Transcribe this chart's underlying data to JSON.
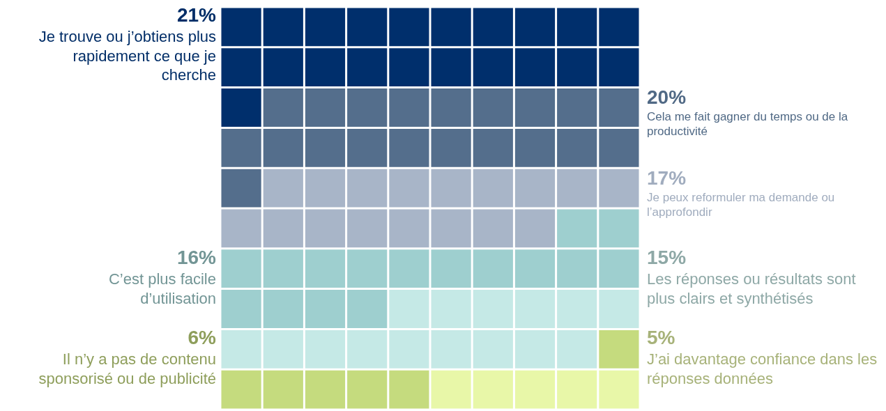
{
  "chart_data": {
    "type": "other",
    "categories": [
      "Je trouve ou j’obtiens plus rapidement ce que je cherche",
      "Cela me fait gagner du temps ou de la productivité",
      "Je peux reformuler ma demande ou l’approfondir",
      "C’est plus facile d’utilisation",
      "Les réponses ou résultats sont plus clairs et synthétisés",
      "Il n’y a pas de contenu sponsorisé ou de publicité",
      "J’ai davantage confiance dans les réponses données"
    ],
    "values": [
      21,
      20,
      17,
      16,
      15,
      6,
      5
    ],
    "value_labels": [
      "21%",
      "20%",
      "17%",
      "16%",
      "15%",
      "6%",
      "5%"
    ],
    "colors": [
      "#002f6c",
      "#546e8c",
      "#a8b5c8",
      "#9ecfcf",
      "#c5e9e6",
      "#c5db7e",
      "#e8f7a8"
    ]
  }
}
